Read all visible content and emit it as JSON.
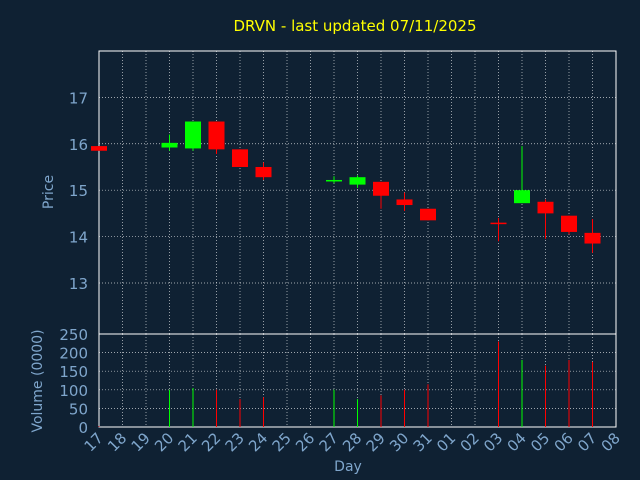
{
  "colors": {
    "background": "#0f2133",
    "frame": "#ffffff",
    "grid": "#ffffff",
    "title": "#ffff00",
    "axis_text": "#7fa6cc",
    "up": "#00ff00",
    "down": "#ff0000"
  },
  "chart_data": [
    {
      "type": "candlestick",
      "title": "DRVN - last updated 07/11/2025",
      "ylabel": "Price",
      "xlabel": "Day",
      "ylim": [
        11.9,
        18.0
      ],
      "yticks": [
        13,
        14,
        15,
        16,
        17
      ],
      "grid": true,
      "x_ticks": [
        "17",
        "18",
        "19",
        "20",
        "21",
        "22",
        "23",
        "24",
        "25",
        "26",
        "27",
        "28",
        "29",
        "30",
        "31",
        "01",
        "02",
        "03",
        "04",
        "05",
        "06",
        "07",
        "08"
      ],
      "candles": [
        {
          "day": "17",
          "open": 15.95,
          "close": 15.85,
          "high": 15.95,
          "low": 15.85
        },
        {
          "day": "20",
          "open": 15.92,
          "close": 16.02,
          "high": 16.2,
          "low": 15.85
        },
        {
          "day": "21",
          "open": 15.9,
          "close": 16.48,
          "high": 16.48,
          "low": 15.85
        },
        {
          "day": "22",
          "open": 16.48,
          "close": 15.88,
          "high": 16.48,
          "low": 15.78
        },
        {
          "day": "23",
          "open": 15.88,
          "close": 15.5,
          "high": 15.88,
          "low": 15.5
        },
        {
          "day": "24",
          "open": 15.5,
          "close": 15.28,
          "high": 15.6,
          "low": 15.22
        },
        {
          "day": "27",
          "open": 15.2,
          "close": 15.22,
          "high": 15.3,
          "low": 15.15
        },
        {
          "day": "28",
          "open": 15.12,
          "close": 15.28,
          "high": 15.32,
          "low": 15.05
        },
        {
          "day": "29",
          "open": 15.18,
          "close": 14.88,
          "high": 15.18,
          "low": 14.6
        },
        {
          "day": "30",
          "open": 14.8,
          "close": 14.68,
          "high": 14.95,
          "low": 14.55
        },
        {
          "day": "31",
          "open": 14.6,
          "close": 14.35,
          "high": 14.6,
          "low": 14.35
        },
        {
          "day": "03",
          "open": 14.3,
          "close": 14.27,
          "high": 14.4,
          "low": 13.9
        },
        {
          "day": "04",
          "open": 14.72,
          "close": 15.0,
          "high": 15.95,
          "low": 14.72
        },
        {
          "day": "05",
          "open": 14.75,
          "close": 14.5,
          "high": 14.8,
          "low": 13.95
        },
        {
          "day": "06",
          "open": 14.45,
          "close": 14.1,
          "high": 14.45,
          "low": 14.05
        },
        {
          "day": "07",
          "open": 14.08,
          "close": 13.85,
          "high": 14.38,
          "low": 13.65
        }
      ]
    },
    {
      "type": "bar",
      "ylabel": "Volume (0000)",
      "ylim": [
        0,
        250
      ],
      "yticks": [
        0,
        50,
        100,
        150,
        200,
        250
      ],
      "series": [
        {
          "days": [
            "17",
            "20",
            "21",
            "22",
            "23",
            "24",
            "27",
            "28",
            "29",
            "30",
            "31",
            "03",
            "04",
            "05",
            "06",
            "07"
          ],
          "values": [
            2,
            100,
            105,
            100,
            75,
            80,
            100,
            75,
            85,
            100,
            115,
            230,
            180,
            165,
            180,
            175
          ],
          "direction": [
            "down",
            "up",
            "up",
            "down",
            "down",
            "down",
            "up",
            "up",
            "down",
            "down",
            "down",
            "down",
            "up",
            "down",
            "down",
            "down"
          ]
        }
      ]
    }
  ]
}
